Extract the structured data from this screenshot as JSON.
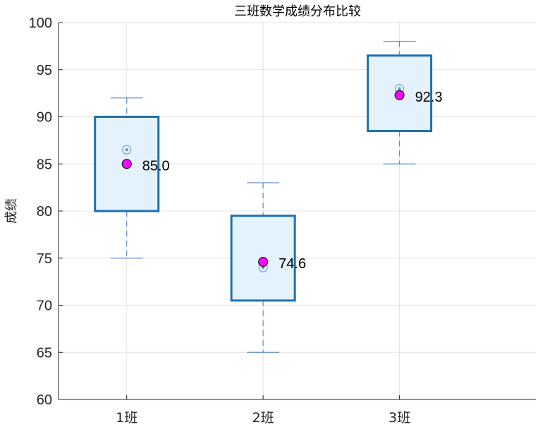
{
  "chart_data": {
    "type": "box",
    "title": "三班数学成绩分布比较",
    "xlabel": "",
    "ylabel": "成绩",
    "ylim": [
      60,
      100
    ],
    "yticks": [
      60,
      65,
      70,
      75,
      80,
      85,
      90,
      95,
      100
    ],
    "grid": true,
    "categories": [
      "1班",
      "2班",
      "3班"
    ],
    "boxes": [
      {
        "category": "1班",
        "min": 75,
        "q1": 80,
        "median": 86.5,
        "q3": 90,
        "max": 92,
        "mean": 85.0,
        "mean_label": "85.0"
      },
      {
        "category": "2班",
        "min": 65,
        "q1": 70.5,
        "median": 74,
        "q3": 79.5,
        "max": 83,
        "mean": 74.6,
        "mean_label": "74.6"
      },
      {
        "category": "3班",
        "min": 85,
        "q1": 88.5,
        "median": 93,
        "q3": 96.5,
        "max": 98,
        "mean": 92.3,
        "mean_label": "92.3"
      }
    ],
    "colors": {
      "box_edge": "#1f6fb2",
      "box_fill": "#e4f2fd",
      "whisker": "#5b8fc7",
      "grid": "#e3e3e3",
      "axis": "#262626",
      "mean_fill": "#ff00ff",
      "mean_edge": "#000000"
    }
  }
}
